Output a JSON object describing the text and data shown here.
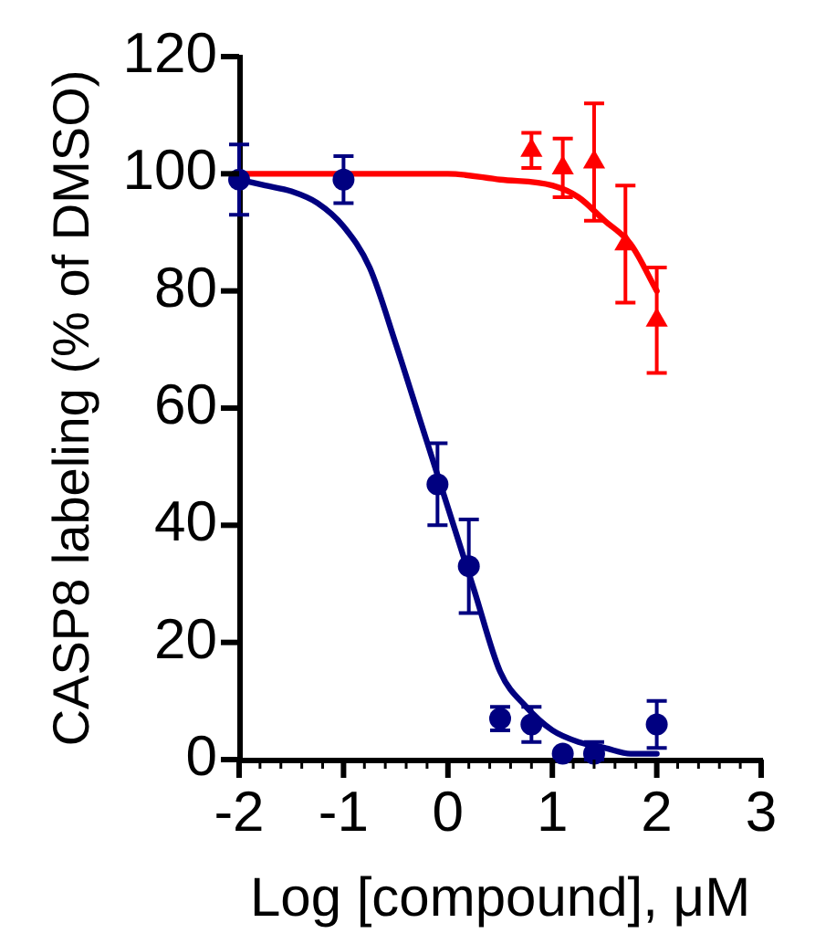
{
  "chart_data": {
    "type": "scatter",
    "xlabel": "Log [compound], μM",
    "ylabel": "CASP8 labeling (% of DMSO)",
    "xlim": [
      -2,
      3
    ],
    "xticks": [
      -2,
      {
        "value": -1.8,
        "label": null
      },
      {
        "value": -1.6,
        "label": null
      },
      {
        "value": -1.4,
        "label": null
      },
      {
        "value": -1.2,
        "label": null
      },
      -1,
      {
        "value": -0.8,
        "label": null
      },
      {
        "value": -0.6,
        "label": null
      },
      {
        "value": -0.4,
        "label": null
      },
      {
        "value": -0.2,
        "label": null
      },
      0,
      {
        "value": 0.2,
        "label": null
      },
      {
        "value": 0.4,
        "label": null
      },
      {
        "value": 0.6,
        "label": null
      },
      {
        "value": 0.8,
        "label": null
      },
      1,
      {
        "value": 1.2,
        "label": null
      },
      {
        "value": 1.4,
        "label": null
      },
      {
        "value": 1.6,
        "label": null
      },
      {
        "value": 1.8,
        "label": null
      },
      2,
      {
        "value": 2.2,
        "label": null
      },
      {
        "value": 2.4,
        "label": null
      },
      {
        "value": 2.6,
        "label": null
      },
      {
        "value": 2.8,
        "label": null
      },
      3
    ],
    "ylim": [
      0,
      120
    ],
    "yticks": [
      0,
      20,
      40,
      60,
      80,
      100,
      120
    ],
    "series": [
      {
        "type": "line",
        "color": "#000080",
        "marker": "none",
        "x": [
          -2,
          -1.75,
          -1.5,
          -1.25,
          -1,
          -0.75,
          -0.5,
          -0.25,
          0,
          0.25,
          0.5,
          0.75,
          1,
          1.25,
          1.5,
          1.75,
          2
        ],
        "values": [
          99,
          98,
          97,
          95,
          91,
          84,
          71,
          57,
          43,
          29,
          15,
          9,
          5,
          3,
          2,
          1,
          1
        ]
      },
      {
        "type": "line",
        "color": "#ff0000",
        "marker": "none",
        "x": [
          -2,
          -1,
          0,
          0.5,
          1,
          1.25,
          1.5,
          1.75,
          2
        ],
        "values": [
          100,
          100,
          100,
          99,
          98,
          96,
          92,
          88,
          80
        ]
      },
      {
        "type": "scatter",
        "color": "#000080",
        "marker": "circle",
        "x": [
          -2,
          -1,
          -0.1,
          0.2,
          0.5,
          0.8,
          1.1,
          1.4,
          2
        ],
        "values": [
          99,
          99,
          47,
          33,
          7,
          6,
          1,
          1,
          6
        ],
        "errors": [
          6,
          4,
          7,
          8,
          2,
          3,
          null,
          [
            0,
            3
          ],
          4
        ]
      },
      {
        "type": "scatter",
        "color": "#ff0000",
        "marker": "triangle",
        "x": [
          0.8,
          1.1,
          1.4,
          1.7,
          2
        ],
        "values": [
          104,
          101,
          102,
          88,
          75
        ],
        "errors": [
          3,
          5,
          10,
          10,
          9
        ]
      }
    ]
  }
}
